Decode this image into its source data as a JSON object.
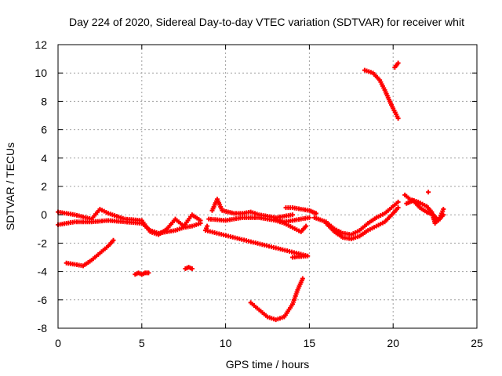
{
  "chart_data": {
    "type": "scatter",
    "title": "Day 224 of 2020, Sidereal Day-to-day VTEC variation (SDTVAR) for receiver whit",
    "xlabel": "GPS time / hours",
    "ylabel": "SDTVAR / TECUs",
    "xlim": [
      0,
      25
    ],
    "ylim": [
      -8,
      12
    ],
    "xticks": [
      0,
      5,
      10,
      15,
      20,
      25
    ],
    "yticks": [
      -8,
      -6,
      -4,
      -2,
      0,
      2,
      4,
      6,
      8,
      10,
      12
    ],
    "grid": true,
    "marker": "+",
    "color": "#ff0000",
    "segments": [
      {
        "name": "main-upper",
        "points": [
          [
            0,
            0.2
          ],
          [
            1,
            0
          ],
          [
            2,
            -0.3
          ],
          [
            2.5,
            0.4
          ],
          [
            3,
            0.1
          ],
          [
            4,
            -0.3
          ],
          [
            5,
            -0.4
          ],
          [
            5.5,
            -1.2
          ],
          [
            6,
            -1.4
          ],
          [
            6.5,
            -1
          ],
          [
            7,
            -0.3
          ],
          [
            7.5,
            -0.8
          ],
          [
            8,
            0
          ],
          [
            8.5,
            -0.4
          ]
        ]
      },
      {
        "name": "main-lower",
        "points": [
          [
            0,
            -0.7
          ],
          [
            1,
            -0.5
          ],
          [
            2,
            -0.5
          ],
          [
            3,
            -0.4
          ],
          [
            4,
            -0.5
          ],
          [
            5,
            -0.6
          ],
          [
            5.5,
            -1.1
          ],
          [
            6,
            -1.3
          ],
          [
            6.5,
            -1.2
          ],
          [
            7,
            -1.1
          ],
          [
            7.5,
            -0.9
          ],
          [
            8,
            -0.8
          ],
          [
            8.5,
            -0.6
          ]
        ]
      },
      {
        "name": "dip-left",
        "points": [
          [
            0.5,
            -3.4
          ],
          [
            1,
            -3.5
          ],
          [
            1.5,
            -3.6
          ],
          [
            2,
            -3.2
          ],
          [
            2.5,
            -2.7
          ],
          [
            3,
            -2.2
          ],
          [
            3.3,
            -1.8
          ]
        ]
      },
      {
        "name": "cluster-5",
        "points": [
          [
            4.6,
            -4.2
          ],
          [
            4.8,
            -4.1
          ],
          [
            5,
            -4.2
          ],
          [
            5.2,
            -4.1
          ],
          [
            5.4,
            -4.1
          ]
        ]
      },
      {
        "name": "cluster-8",
        "points": [
          [
            7.6,
            -3.8
          ],
          [
            7.8,
            -3.7
          ],
          [
            8,
            -3.8
          ]
        ]
      },
      {
        "name": "mid-a",
        "points": [
          [
            9.2,
            0.3
          ],
          [
            9.5,
            1.1
          ],
          [
            9.8,
            0.3
          ],
          [
            10.5,
            0.1
          ],
          [
            11,
            0.1
          ],
          [
            11.5,
            0.2
          ],
          [
            12,
            0
          ],
          [
            12.5,
            -0.1
          ],
          [
            13,
            -0.2
          ],
          [
            13.5,
            -0.1
          ],
          [
            14,
            0
          ]
        ]
      },
      {
        "name": "mid-b",
        "points": [
          [
            9,
            -0.3
          ],
          [
            10,
            -0.4
          ],
          [
            11,
            -0.2
          ],
          [
            12,
            -0.2
          ],
          [
            12.5,
            -0.3
          ],
          [
            13,
            -0.4
          ],
          [
            13.5,
            -0.6
          ],
          [
            14,
            -0.9
          ],
          [
            14.5,
            -1.2
          ],
          [
            14.8,
            -0.8
          ]
        ]
      },
      {
        "name": "mid-c",
        "points": [
          [
            13,
            -0.3
          ],
          [
            13.5,
            -0.5
          ],
          [
            14,
            -0.4
          ],
          [
            14.5,
            -0.3
          ],
          [
            15,
            -0.2
          ]
        ]
      },
      {
        "name": "mid-d",
        "points": [
          [
            13.6,
            0.5
          ],
          [
            14,
            0.5
          ],
          [
            14.5,
            0.4
          ],
          [
            15,
            0.3
          ],
          [
            15.4,
            0.1
          ]
        ]
      },
      {
        "name": "mid-isolated",
        "points": [
          [
            14,
            -3
          ],
          [
            14.9,
            -2.9
          ],
          [
            8.8,
            -1.1
          ],
          [
            8.9,
            -0.8
          ]
        ]
      },
      {
        "name": "dip-center",
        "points": [
          [
            11.5,
            -6.2
          ],
          [
            12,
            -6.7
          ],
          [
            12.5,
            -7.2
          ],
          [
            13,
            -7.4
          ],
          [
            13.5,
            -7.2
          ],
          [
            14,
            -6.3
          ],
          [
            14.3,
            -5.3
          ],
          [
            14.6,
            -4.5
          ]
        ]
      },
      {
        "name": "right-a",
        "points": [
          [
            15.3,
            -0.2
          ],
          [
            16,
            -0.5
          ],
          [
            16.5,
            -1
          ],
          [
            17,
            -1.3
          ],
          [
            17.5,
            -1.4
          ],
          [
            18,
            -1.1
          ],
          [
            18.5,
            -0.6
          ],
          [
            19,
            -0.2
          ],
          [
            19.5,
            0.1
          ],
          [
            20,
            0.6
          ],
          [
            20.3,
            0.9
          ]
        ]
      },
      {
        "name": "right-b",
        "points": [
          [
            16,
            -0.6
          ],
          [
            16.5,
            -1.2
          ],
          [
            17,
            -1.6
          ],
          [
            17.5,
            -1.7
          ],
          [
            18,
            -1.5
          ],
          [
            18.5,
            -1.1
          ],
          [
            19,
            -0.8
          ],
          [
            19.5,
            -0.5
          ],
          [
            20,
            0.1
          ],
          [
            20.3,
            0.5
          ]
        ]
      },
      {
        "name": "right-c",
        "points": [
          [
            20.7,
            1.4
          ],
          [
            21,
            1.1
          ],
          [
            21.5,
            0.9
          ],
          [
            22,
            0.6
          ],
          [
            22.3,
            0.2
          ],
          [
            22.5,
            -0.6
          ],
          [
            22.8,
            -0.2
          ],
          [
            23,
            0.4
          ]
        ]
      },
      {
        "name": "right-d",
        "points": [
          [
            20.8,
            0.8
          ],
          [
            21.2,
            1
          ],
          [
            21.6,
            0.5
          ],
          [
            22,
            0.2
          ],
          [
            22.4,
            0
          ],
          [
            22.7,
            -0.4
          ],
          [
            23,
            0
          ]
        ]
      },
      {
        "name": "right-isolated",
        "points": [
          [
            22.1,
            1.6
          ]
        ]
      },
      {
        "name": "high-arc",
        "points": [
          [
            18.3,
            10.2
          ],
          [
            18.8,
            10
          ],
          [
            19.2,
            9.5
          ],
          [
            19.5,
            8.8
          ],
          [
            19.8,
            8
          ],
          [
            20,
            7.5
          ],
          [
            20.3,
            6.8
          ]
        ]
      },
      {
        "name": "high-short",
        "points": [
          [
            20.1,
            10.4
          ],
          [
            20.3,
            10.7
          ]
        ]
      }
    ]
  }
}
